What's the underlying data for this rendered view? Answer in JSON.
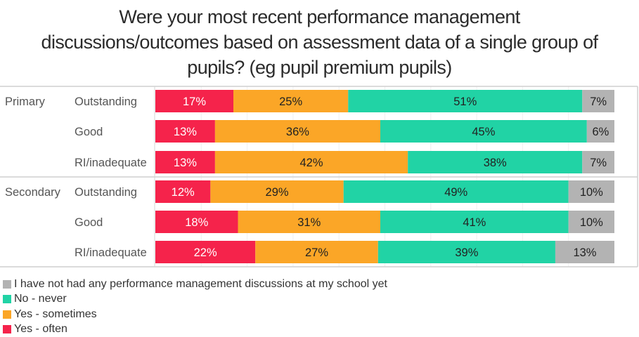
{
  "chart_data": {
    "type": "bar",
    "orientation": "horizontal",
    "stacked": true,
    "title": "Were your most recent performance management discussions/outcomes based on assessment data of a single group of pupils? (eg pupil premium pupils)",
    "title_lines": [
      "Were your most recent performance management",
      "discussions/outcomes based on assessment data of a single group of",
      "pupils? (eg pupil premium pupils)"
    ],
    "groups": [
      {
        "name": "Primary",
        "categories": [
          "Outstanding",
          "Good",
          "RI/inadequate"
        ]
      },
      {
        "name": "Secondary",
        "categories": [
          "Outstanding",
          "Good",
          "RI/inadequate"
        ]
      }
    ],
    "series": [
      {
        "name": "Yes - often",
        "color": "#f5234b",
        "label_color": "#ffffff",
        "values": [
          17,
          13,
          13,
          12,
          18,
          22
        ]
      },
      {
        "name": "Yes - sometimes",
        "color": "#fba627",
        "label_color": "#222222",
        "values": [
          25,
          36,
          42,
          29,
          31,
          27
        ]
      },
      {
        "name": "No - never",
        "color": "#21d3a5",
        "label_color": "#222222",
        "values": [
          51,
          45,
          38,
          49,
          41,
          39
        ]
      },
      {
        "name": "I have not had any performance management discussions at my school yet",
        "color": "#b3b3b3",
        "label_color": "#222222",
        "values": [
          7,
          6,
          7,
          10,
          10,
          13
        ]
      }
    ],
    "value_suffix": "%",
    "xlim": [
      0,
      100
    ],
    "legend_position": "bottom-left",
    "legend_order": [
      3,
      2,
      1,
      0
    ]
  }
}
